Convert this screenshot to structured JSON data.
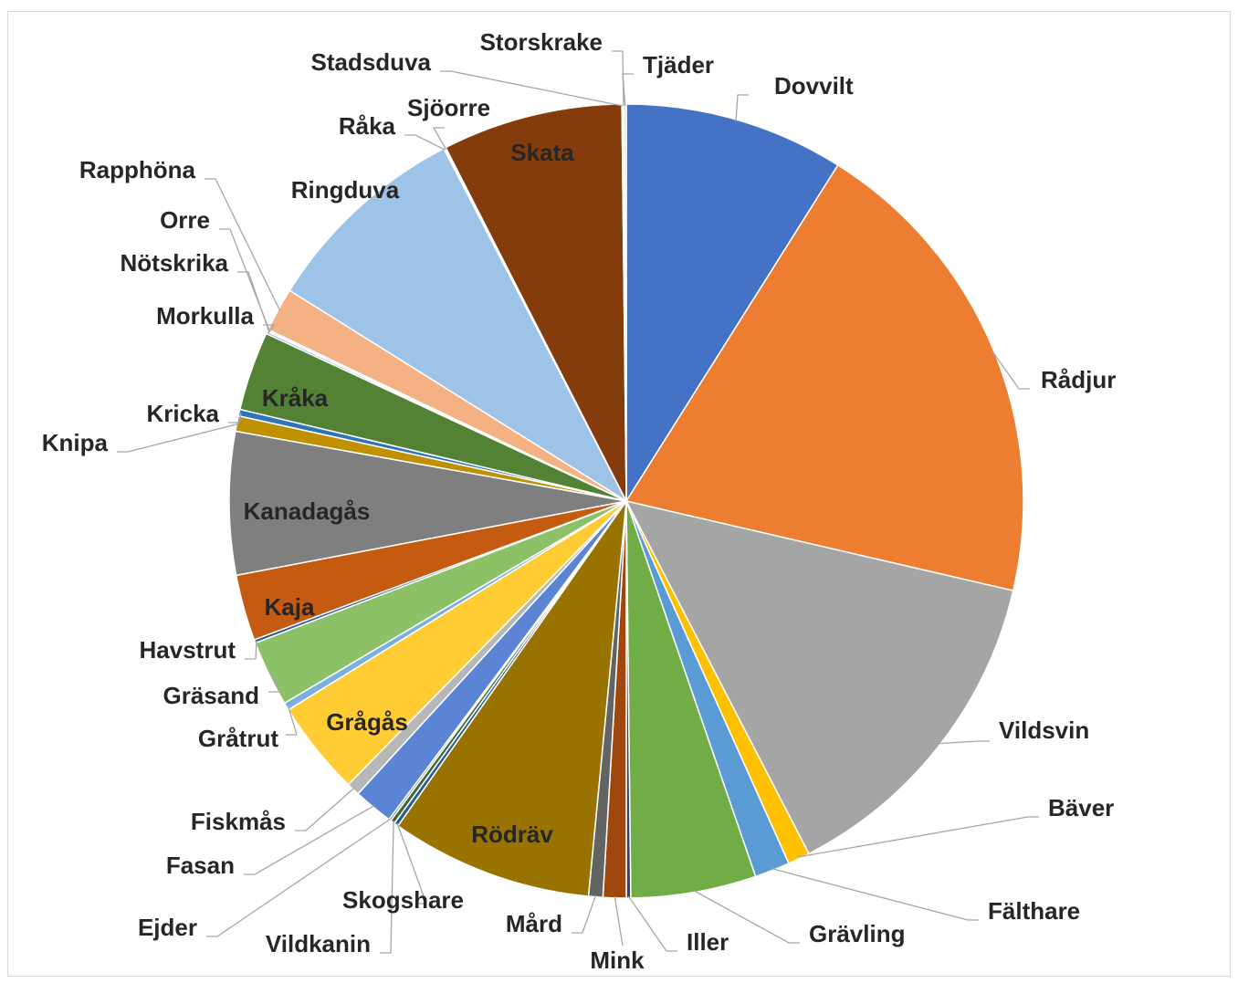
{
  "chart_data": {
    "type": "pie",
    "title": "",
    "start_angle_deg": 0,
    "direction": "clockwise",
    "slices": [
      {
        "label": "Dovvilt",
        "value": 10.0,
        "color": "#4472c4",
        "label_inside": false
      },
      {
        "label": "Rådjur",
        "value": 22.0,
        "color": "#ed7d31",
        "label_inside": false
      },
      {
        "label": "Vildsvin",
        "value": 15.4,
        "color": "#a5a5a5",
        "label_inside": false
      },
      {
        "label": "Bäver",
        "value": 1.0,
        "color": "#ffc000",
        "label_inside": false
      },
      {
        "label": "Fälthare",
        "value": 1.6,
        "color": "#5b9bd5",
        "label_inside": false
      },
      {
        "label": "Grävling",
        "value": 5.7,
        "color": "#70ad47",
        "label_inside": false
      },
      {
        "label": "Iller",
        "value": 0.2,
        "color": "#264478",
        "label_inside": false
      },
      {
        "label": "Mink",
        "value": 1.05,
        "color": "#9e480e",
        "label_inside": false
      },
      {
        "label": "Mård",
        "value": 0.65,
        "color": "#636363",
        "label_inside": false
      },
      {
        "label": "Rödräv",
        "value": 9.2,
        "color": "#997300",
        "label_inside": true
      },
      {
        "label": "Skogshare",
        "value": 0.2,
        "color": "#255e91",
        "label_inside": false
      },
      {
        "label": "Vildkanin",
        "value": 0.2,
        "color": "#43682b",
        "label_inside": false
      },
      {
        "label": "Ejder",
        "value": 0.1,
        "color": "#698ed0",
        "label_inside": false
      },
      {
        "label": "Fasan",
        "value": 1.8,
        "color": "#5b84d4",
        "label_inside": false
      },
      {
        "label": "Fiskmås",
        "value": 0.6,
        "color": "#b7b7b7",
        "label_inside": false
      },
      {
        "label": "Grågås",
        "value": 4.3,
        "color": "#ffcd33",
        "label_inside": true
      },
      {
        "label": "Gråtrut",
        "value": 0.35,
        "color": "#7cafdd",
        "label_inside": false
      },
      {
        "label": "Gräsand",
        "value": 3.0,
        "color": "#8cc168",
        "label_inside": false
      },
      {
        "label": "Havstrut",
        "value": 0.15,
        "color": "#2f5597",
        "label_inside": false
      },
      {
        "label": "Kaja",
        "value": 3.0,
        "color": "#c55a11",
        "label_inside": true
      },
      {
        "label": "Kanadagås",
        "value": 6.5,
        "color": "#7f7f7f",
        "label_inside": true
      },
      {
        "label": "Knipa",
        "value": 0.7,
        "color": "#bf9000",
        "label_inside": false
      },
      {
        "label": "Kricka",
        "value": 0.3,
        "color": "#2e75b6",
        "label_inside": false
      },
      {
        "label": "Kråka",
        "value": 3.6,
        "color": "#548235",
        "label_inside": true
      },
      {
        "label": "Morkulla",
        "value": 0.1,
        "color": "#8faadc",
        "label_inside": false
      },
      {
        "label": "Nötskrika",
        "value": 0.05,
        "color": "#f4b183",
        "label_inside": false
      },
      {
        "label": "Orre",
        "value": 0.05,
        "color": "#a9d18e",
        "label_inside": false
      },
      {
        "label": "Rapphöna",
        "value": 2.0,
        "color": "#f4b183",
        "label_inside": false
      },
      {
        "label": "Ringduva",
        "value": 9.5,
        "color": "#9dc3e6",
        "label_inside": true
      },
      {
        "label": "Råka",
        "value": 0.05,
        "color": "#a5a5a5",
        "label_inside": false
      },
      {
        "label": "Sjöorre",
        "value": 0.05,
        "color": "#ffd966",
        "label_inside": false
      },
      {
        "label": "Skata",
        "value": 8.2,
        "color": "#843c0c",
        "label_inside": true
      },
      {
        "label": "Stadsduva",
        "value": 0.05,
        "color": "#d6dce5",
        "label_inside": false
      },
      {
        "label": "Storskrake",
        "value": 0.05,
        "color": "#1f4e79",
        "label_inside": false
      },
      {
        "label": "Tjäder",
        "value": 0.1,
        "color": "#c5e0b4",
        "label_inside": false
      }
    ]
  }
}
